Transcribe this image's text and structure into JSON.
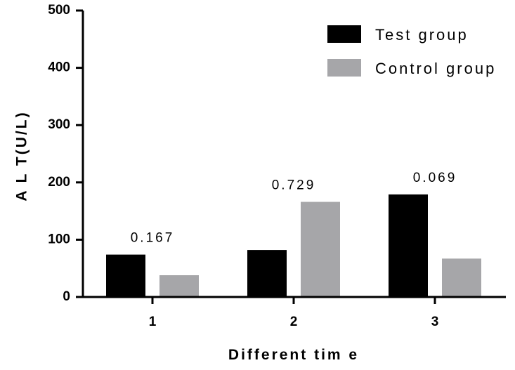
{
  "chart_data": {
    "type": "bar",
    "title": "",
    "xlabel": "Different tim e",
    "ylabel": "A L T(U/L)",
    "ylim": [
      0,
      500
    ],
    "yticks": [
      0,
      100,
      200,
      300,
      400,
      500
    ],
    "categories": [
      "1",
      "2",
      "3"
    ],
    "series": [
      {
        "name": "Test group",
        "color": "#000000",
        "values": [
          74,
          82,
          179
        ]
      },
      {
        "name": "Control group",
        "color": "#a6a6a9",
        "values": [
          38,
          166,
          67
        ]
      }
    ],
    "annotations": [
      "0.167",
      "0.729",
      "0.069"
    ],
    "legend_position": "top-right",
    "grid": false
  }
}
